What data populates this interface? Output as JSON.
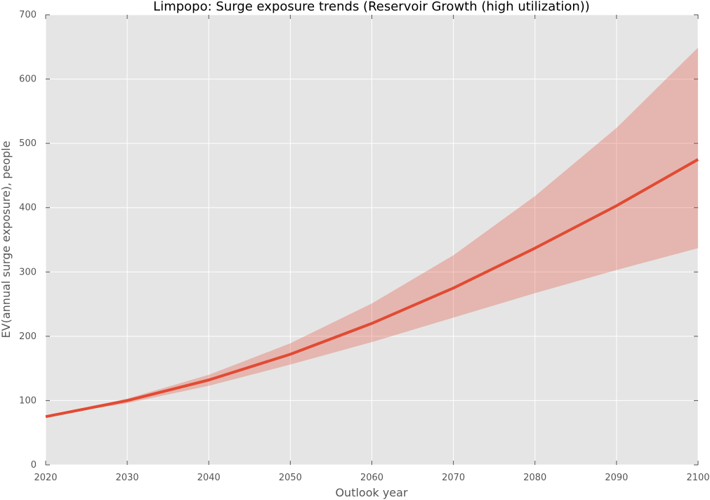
{
  "chart_data": {
    "type": "line",
    "title": "Limpopo: Surge exposure trends (Reservoir Growth (high utilization))",
    "xlabel": "Outlook year",
    "ylabel": "EV(annual surge exposure), people",
    "xlim": [
      2020,
      2100
    ],
    "ylim": [
      0,
      700
    ],
    "x_ticks": [
      2020,
      2030,
      2040,
      2050,
      2060,
      2070,
      2080,
      2090,
      2100
    ],
    "y_ticks": [
      0,
      100,
      200,
      300,
      400,
      500,
      600,
      700
    ],
    "grid": true,
    "x": [
      2020,
      2030,
      2040,
      2050,
      2060,
      2070,
      2080,
      2090,
      2100
    ],
    "series": [
      {
        "values": [
          75,
          100,
          132,
          172,
          220,
          275,
          337,
          403,
          475
        ],
        "lower": [
          75,
          96,
          123,
          156,
          191,
          229,
          267,
          303,
          337
        ],
        "upper": [
          75,
          103,
          140,
          189,
          251,
          326,
          418,
          524,
          649
        ]
      }
    ],
    "colors": {
      "background": "#e5e5e5",
      "grid": "#ffffff",
      "line": "#e24a33",
      "band": "#e24a33"
    }
  }
}
